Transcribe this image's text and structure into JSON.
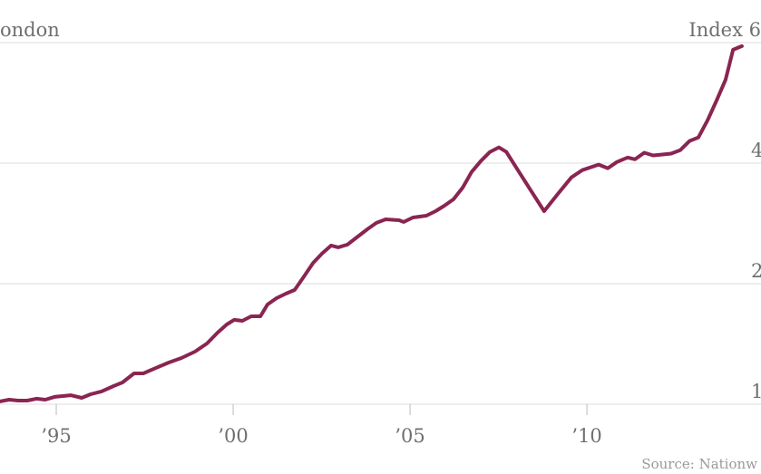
{
  "chart_data": {
    "type": "line",
    "title": "ondon",
    "ylabel": "Index 6",
    "source": "Source: Nationw",
    "log_scale": true,
    "grid": true,
    "xlim": [
      1993.41,
      2014.92
    ],
    "xticks": [
      {
        "value": 1995,
        "label": "’95"
      },
      {
        "value": 2000,
        "label": "’00"
      },
      {
        "value": 2005,
        "label": "’05"
      },
      {
        "value": 2010,
        "label": "’10"
      }
    ],
    "ylim": [
      88,
      800
    ],
    "yticks": [
      {
        "value": 100,
        "label": "1"
      },
      {
        "value": 200,
        "label": "2"
      },
      {
        "value": 400,
        "label": "4"
      }
    ],
    "x": [
      1993.41,
      1993.67,
      1993.92,
      1994.18,
      1994.44,
      1994.69,
      1994.95,
      1995.41,
      1995.72,
      1995.97,
      1996.28,
      1996.62,
      1996.87,
      1997.2,
      1997.46,
      1997.82,
      1998.18,
      1998.54,
      1998.92,
      1999.26,
      1999.56,
      1999.82,
      2000.03,
      2000.26,
      2000.51,
      2000.77,
      2000.97,
      2001.23,
      2001.49,
      2001.74,
      2002.0,
      2002.26,
      2002.51,
      2002.77,
      2002.97,
      2003.23,
      2003.49,
      2003.79,
      2004.05,
      2004.31,
      2004.69,
      2004.82,
      2005.08,
      2005.46,
      2005.72,
      2005.97,
      2006.23,
      2006.49,
      2006.74,
      2007.0,
      2007.26,
      2007.51,
      2007.72,
      2008.03,
      2008.41,
      2008.79,
      2009.18,
      2009.56,
      2009.87,
      2010.33,
      2010.59,
      2010.85,
      2011.15,
      2011.36,
      2011.62,
      2011.87,
      2012.13,
      2012.38,
      2012.64,
      2012.9,
      2013.15,
      2013.41,
      2013.67,
      2013.92,
      2014.13,
      2014.38
    ],
    "series": [
      {
        "color": "#8a2552",
        "values": [
          101.6,
          102.6,
          102.1,
          102.1,
          103.2,
          102.6,
          104.3,
          105.3,
          103.7,
          105.9,
          107.6,
          111,
          113.3,
          119.4,
          119.4,
          123.2,
          127.1,
          130.4,
          135.3,
          141.8,
          150.9,
          158.2,
          162.4,
          161.5,
          165.8,
          165.8,
          177.4,
          184.1,
          188.8,
          192.9,
          208.4,
          225.3,
          237.6,
          249,
          246.5,
          250.3,
          260.9,
          273.4,
          283.7,
          289.5,
          288,
          285.2,
          292.5,
          295.6,
          303.5,
          313.1,
          324.9,
          347.6,
          380.1,
          404.7,
          426.7,
          438,
          426.7,
          386.3,
          342.2,
          303.5,
          335.2,
          368.3,
          384.2,
          396.6,
          388.4,
          402.6,
          413.2,
          408.9,
          424.6,
          418,
          420.2,
          422.4,
          431.2,
          454.3,
          463.8,
          511.9,
          574.6,
          646.8,
          767.7,
          783.9
        ]
      }
    ]
  }
}
